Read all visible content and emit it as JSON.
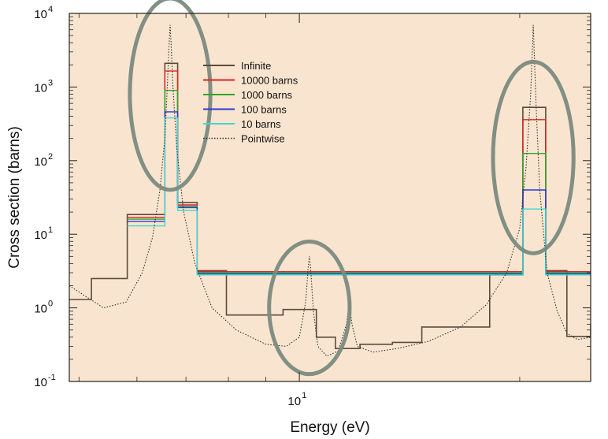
{
  "chart_data": {
    "type": "line",
    "title": "",
    "xlabel": "Energy (eV)",
    "ylabel": "Cross section (barns)",
    "xscale": "log",
    "yscale": "log",
    "xlim": [
      4.85,
      25.0
    ],
    "ylim": [
      0.1,
      10000
    ],
    "grid": false,
    "legend_position": "top-center",
    "background_color": "#f9e5cf",
    "x_tick_labels": [
      {
        "value": 10,
        "base": "10",
        "exp": "1"
      }
    ],
    "y_tick_labels": [
      {
        "value": 0.1,
        "base": "10",
        "exp": "-1"
      },
      {
        "value": 1,
        "base": "10",
        "exp": "0"
      },
      {
        "value": 10,
        "base": "10",
        "exp": "1"
      },
      {
        "value": 100,
        "base": "10",
        "exp": "2"
      },
      {
        "value": 1000,
        "base": "10",
        "exp": "3"
      },
      {
        "value": 10000,
        "base": "10",
        "exp": "4"
      }
    ],
    "x_minor_ticks": [
      5,
      6,
      7,
      8,
      9,
      20
    ],
    "highlight_ellipses": [
      {
        "x_center": 6.66,
        "y_center": 800,
        "x_halfspan_decades": 0.055,
        "y_halfspan_decades": 1.3
      },
      {
        "x_center": 10.32,
        "y_center": 1.0,
        "x_halfspan_decades": 0.055,
        "y_halfspan_decades": 0.9
      },
      {
        "x_center": 20.87,
        "y_center": 110,
        "x_halfspan_decades": 0.055,
        "y_halfspan_decades": 1.3
      }
    ],
    "series": [
      {
        "name": "Infinite",
        "color": "#5c4a3c",
        "style": "step",
        "edges": [
          4.85,
          5.2,
          5.82,
          6.3,
          6.55,
          6.82,
          7.25,
          7.95,
          8.6,
          9.5,
          10.55,
          11.2,
          12.1,
          13.4,
          14.7,
          16.3,
          18.2,
          20.2,
          21.7,
          23.2,
          25.0
        ],
        "values": [
          1.3,
          2.5,
          18.5,
          18.5,
          2100,
          27,
          3.2,
          0.8,
          0.8,
          0.95,
          0.4,
          0.28,
          0.32,
          0.34,
          0.55,
          0.55,
          2.8,
          530,
          3.2,
          0.41,
          0.6
        ]
      },
      {
        "name": "10000 barns",
        "color": "#e0241f",
        "style": "step",
        "edges": [
          5.82,
          6.3,
          6.55,
          6.82,
          7.25,
          20.2,
          21.7
        ],
        "values": [
          17,
          17,
          1650,
          25,
          3.1,
          360,
          3.1
        ]
      },
      {
        "name": "1000 barns",
        "color": "#2da82d",
        "style": "step",
        "edges": [
          5.82,
          6.3,
          6.55,
          6.82,
          7.25,
          20.2,
          21.7
        ],
        "values": [
          16,
          16,
          900,
          24,
          3.0,
          125,
          3.0
        ]
      },
      {
        "name": "100 barns",
        "color": "#2b36d9",
        "style": "step",
        "edges": [
          5.82,
          6.3,
          6.55,
          6.82,
          7.25,
          20.2,
          21.7
        ],
        "values": [
          15,
          15,
          460,
          23,
          2.9,
          40,
          2.9
        ]
      },
      {
        "name": "10 barns",
        "color": "#3fd6d6",
        "style": "step",
        "edges": [
          5.82,
          6.3,
          6.55,
          6.82,
          7.25,
          20.2,
          21.7
        ],
        "values": [
          13,
          13,
          380,
          21,
          2.8,
          22,
          2.8
        ]
      },
      {
        "name": "Pointwise",
        "color": "#333333",
        "style": "dotted",
        "x": [
          4.85,
          5.4,
          5.8,
          6.1,
          6.3,
          6.45,
          6.55,
          6.6,
          6.64,
          6.66,
          6.68,
          6.72,
          6.8,
          6.95,
          7.2,
          7.6,
          8.2,
          9.0,
          9.6,
          10.0,
          10.2,
          10.28,
          10.32,
          10.36,
          10.45,
          10.6,
          10.9,
          11.3,
          11.6,
          11.7,
          11.8,
          12.0,
          12.6,
          13.6,
          15.0,
          16.6,
          18.0,
          19.2,
          20.0,
          20.4,
          20.7,
          20.82,
          20.87,
          20.92,
          21.05,
          21.3,
          21.8,
          22.5,
          23.2,
          24.0,
          25.0
        ],
        "y": [
          2.0,
          1.0,
          1.2,
          3.0,
          9.0,
          40,
          200,
          1000,
          4000,
          7000,
          4000,
          1000,
          150,
          20,
          4.0,
          1.0,
          0.5,
          0.32,
          0.3,
          0.4,
          1.2,
          3.5,
          5.0,
          3.5,
          0.9,
          0.3,
          0.22,
          0.26,
          0.6,
          1.2,
          0.6,
          0.3,
          0.25,
          0.28,
          0.35,
          0.55,
          1.1,
          3.0,
          12,
          80,
          800,
          3500,
          7000,
          3500,
          600,
          40,
          3.0,
          0.9,
          0.45,
          0.37,
          0.4
        ]
      }
    ],
    "annotations": {
      "peak_x": [
        6.66,
        10.32,
        20.87
      ]
    }
  }
}
